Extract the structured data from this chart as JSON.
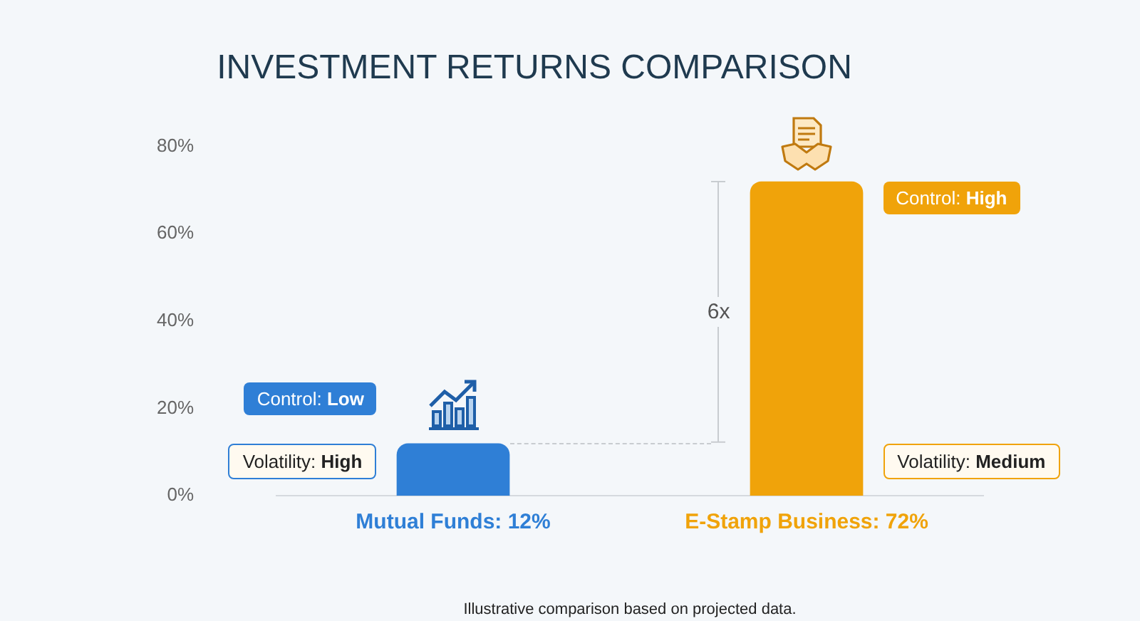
{
  "chart_data": {
    "type": "bar",
    "title": "INVESTMENT RETURNS COMPARISON",
    "categories": [
      "Mutual Funds: 12%",
      "E-Stamp Business: 72%"
    ],
    "values": [
      12,
      72
    ],
    "colors": [
      "#2f7fd6",
      "#f0a30a"
    ],
    "ylim": [
      0,
      80
    ],
    "yticks": [
      {
        "value": 0,
        "label": "0%"
      },
      {
        "value": 20,
        "label": "20%"
      },
      {
        "value": 40,
        "label": "40%"
      },
      {
        "value": 60,
        "label": "60%"
      },
      {
        "value": 80,
        "label": "80%"
      }
    ],
    "grid": false,
    "legend": false,
    "annotations": [
      "Control: Low",
      "Volatility: High",
      "Control: High",
      "Volatility: Medium",
      "6x",
      "Illustrative comparison based on projected data."
    ]
  }
}
